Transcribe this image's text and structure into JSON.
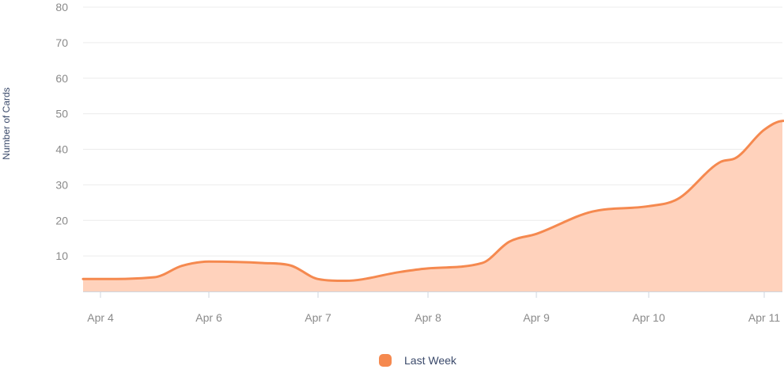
{
  "chart_data": {
    "type": "area",
    "title": "",
    "xlabel": "",
    "ylabel": "Number of Cards",
    "ylim": [
      0,
      80
    ],
    "y_ticks": [
      10,
      20,
      30,
      40,
      50,
      60,
      70,
      80
    ],
    "x_ticks": [
      "Apr 4",
      "Apr 6",
      "Apr 7",
      "Apr 8",
      "Apr 9",
      "Apr 10",
      "Apr 11"
    ],
    "grid": true,
    "legend": "bottom-center",
    "series": [
      {
        "name": "Last Week",
        "color": "#f5894f",
        "fill": "#ffd2bc",
        "points": [
          {
            "x": "2021-04-04 00:00",
            "y": 3.5
          },
          {
            "x": "2021-04-05 00:00",
            "y": 4.0
          },
          {
            "x": "2021-04-05 12:00",
            "y": 7.2
          },
          {
            "x": "2021-04-06 00:00",
            "y": 8.4
          },
          {
            "x": "2021-04-06 12:00",
            "y": 8.0
          },
          {
            "x": "2021-04-06 18:00",
            "y": 7.3
          },
          {
            "x": "2021-04-07 00:00",
            "y": 3.5
          },
          {
            "x": "2021-04-07 06:00",
            "y": 3.0
          },
          {
            "x": "2021-04-07 18:00",
            "y": 5.5
          },
          {
            "x": "2021-04-08 00:00",
            "y": 6.5
          },
          {
            "x": "2021-04-08 12:00",
            "y": 8.0
          },
          {
            "x": "2021-04-08 18:00",
            "y": 14.0
          },
          {
            "x": "2021-04-09 00:00",
            "y": 16.2
          },
          {
            "x": "2021-04-09 12:00",
            "y": 22.5
          },
          {
            "x": "2021-04-10 00:00",
            "y": 24.0
          },
          {
            "x": "2021-04-10 06:00",
            "y": 26.0
          },
          {
            "x": "2021-04-10 15:00",
            "y": 36.5
          },
          {
            "x": "2021-04-10 18:00",
            "y": 37.5
          },
          {
            "x": "2021-04-11 00:00",
            "y": 45.5
          },
          {
            "x": "2021-04-11 04:00",
            "y": 48.0
          }
        ]
      }
    ]
  }
}
